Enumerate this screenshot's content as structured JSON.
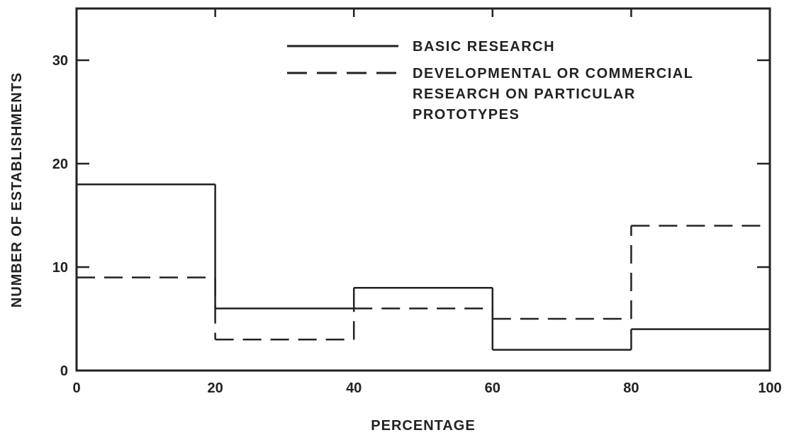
{
  "chart_data": {
    "type": "line",
    "step": true,
    "title": "",
    "xlabel": "PERCENTAGE",
    "ylabel": "NUMBER OF ESTABLISHMENTS",
    "xlim": [
      0,
      100
    ],
    "ylim": [
      0,
      35
    ],
    "x_ticks": [
      0,
      20,
      40,
      60,
      80,
      100
    ],
    "y_ticks": [
      0,
      10,
      20,
      30
    ],
    "bins": [
      [
        0,
        20
      ],
      [
        20,
        40
      ],
      [
        40,
        60
      ],
      [
        60,
        80
      ],
      [
        80,
        100
      ]
    ],
    "series": [
      {
        "name": "BASIC RESEARCH",
        "line_style": "solid",
        "values": [
          18,
          6,
          8,
          2,
          4
        ]
      },
      {
        "name": "DEVELOPMENTAL OR COMMERCIAL RESEARCH ON PARTICULAR PROTOTYPES",
        "name_lines": [
          "DEVELOPMENTAL OR COMMERCIAL",
          "RESEARCH ON PARTICULAR",
          "PROTOTYPES"
        ],
        "line_style": "dashed",
        "values": [
          9,
          3,
          6,
          5,
          14
        ]
      }
    ],
    "legend_position": "top-right",
    "grid": false,
    "colors": {
      "ink": "#222222",
      "background": "#ffffff"
    }
  }
}
